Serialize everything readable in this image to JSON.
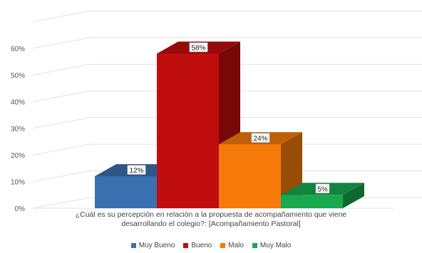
{
  "chart_data": {
    "type": "bar",
    "caption": {
      "line1": "¿Cuál es su percepción en relación a la propuesta de acompañamiento que viene",
      "line2": "desarrollando el colegio?: [Acompañamiento Pastoral]"
    },
    "categories": [
      "Muy Bueno",
      "Bueno",
      "Malo",
      "Muy Malo"
    ],
    "values": [
      12,
      58,
      24,
      5
    ],
    "data_labels": [
      "12%",
      "58%",
      "24%",
      "5%"
    ],
    "colors": [
      "#3a6fb0",
      "#c00d0d",
      "#f57a0a",
      "#1aa84f"
    ],
    "yticks": [
      "0%",
      "10%",
      "20%",
      "30%",
      "40%",
      "50%",
      "60%"
    ],
    "ylim": [
      0,
      70
    ],
    "grid": true,
    "legend_position": "bottom"
  }
}
